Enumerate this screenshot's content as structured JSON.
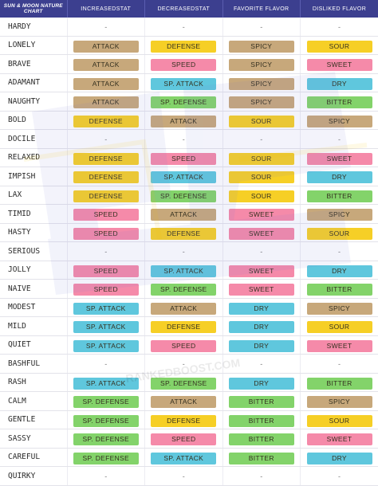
{
  "header": {
    "title": "SUN & MOON NATURE CHART",
    "col_increased": "INCREASEDSTAT",
    "col_decreased": "DECREASEDSTAT",
    "col_favorite": "FAVORITE FLAVOR",
    "col_disliked": "DISLIKED FLAVOR"
  },
  "colors": {
    "ATTACK": "#c7a87b",
    "DEFENSE": "#f6cf26",
    "SPEED": "#f58aa9",
    "SP. ATTACK": "#5fc7dd",
    "SP. DEFENSE": "#83d36a",
    "SPICY": "#c7a87b",
    "SOUR": "#f6cf26",
    "SWEET": "#f58aa9",
    "DRY": "#5fc7dd",
    "BITTER": "#83d36a"
  },
  "watermark": "RANKEDBOOST.COM",
  "natures": [
    {
      "name": "HARDY",
      "inc": "-",
      "dec": "-",
      "fav": "-",
      "dis": "-"
    },
    {
      "name": "LONELY",
      "inc": "ATTACK",
      "dec": "DEFENSE",
      "fav": "SPICY",
      "dis": "SOUR"
    },
    {
      "name": "BRAVE",
      "inc": "ATTACK",
      "dec": "SPEED",
      "fav": "SPICY",
      "dis": "SWEET"
    },
    {
      "name": "ADAMANT",
      "inc": "ATTACK",
      "dec": "SP. ATTACK",
      "fav": "SPICY",
      "dis": "DRY"
    },
    {
      "name": "NAUGHTY",
      "inc": "ATTACK",
      "dec": "SP. DEFENSE",
      "fav": "SPICY",
      "dis": "BITTER"
    },
    {
      "name": "BOLD",
      "inc": "DEFENSE",
      "dec": "ATTACK",
      "fav": "SOUR",
      "dis": "SPICY"
    },
    {
      "name": "DOCILE",
      "inc": "-",
      "dec": "-",
      "fav": "-",
      "dis": "-"
    },
    {
      "name": "RELAXED",
      "inc": "DEFENSE",
      "dec": "SPEED",
      "fav": "SOUR",
      "dis": "SWEET"
    },
    {
      "name": "IMPISH",
      "inc": "DEFENSE",
      "dec": "SP. ATTACK",
      "fav": "SOUR",
      "dis": "DRY"
    },
    {
      "name": "LAX",
      "inc": "DEFENSE",
      "dec": "SP. DEFENSE",
      "fav": "SOUR",
      "dis": "BITTER"
    },
    {
      "name": "TIMID",
      "inc": "SPEED",
      "dec": "ATTACK",
      "fav": "SWEET",
      "dis": "SPICY"
    },
    {
      "name": "HASTY",
      "inc": "SPEED",
      "dec": "DEFENSE",
      "fav": "SWEET",
      "dis": "SOUR"
    },
    {
      "name": "SERIOUS",
      "inc": "-",
      "dec": "-",
      "fav": "-",
      "dis": "-"
    },
    {
      "name": "JOLLY",
      "inc": "SPEED",
      "dec": "SP. ATTACK",
      "fav": "SWEET",
      "dis": "DRY"
    },
    {
      "name": "NAIVE",
      "inc": "SPEED",
      "dec": "SP. DEFENSE",
      "fav": "SWEET",
      "dis": "BITTER"
    },
    {
      "name": "MODEST",
      "inc": "SP. ATTACK",
      "dec": "ATTACK",
      "fav": "DRY",
      "dis": "SPICY"
    },
    {
      "name": "MILD",
      "inc": "SP. ATTACK",
      "dec": "DEFENSE",
      "fav": "DRY",
      "dis": "SOUR"
    },
    {
      "name": "QUIET",
      "inc": "SP. ATTACK",
      "dec": "SPEED",
      "fav": "DRY",
      "dis": "SWEET"
    },
    {
      "name": "BASHFUL",
      "inc": "-",
      "dec": "-",
      "fav": "-",
      "dis": "-"
    },
    {
      "name": "RASH",
      "inc": "SP. ATTACK",
      "dec": "SP. DEFENSE",
      "fav": "DRY",
      "dis": "BITTER"
    },
    {
      "name": "CALM",
      "inc": "SP. DEFENSE",
      "dec": "ATTACK",
      "fav": "BITTER",
      "dis": "SPICY"
    },
    {
      "name": "GENTLE",
      "inc": "SP. DEFENSE",
      "dec": "DEFENSE",
      "fav": "BITTER",
      "dis": "SOUR"
    },
    {
      "name": "SASSY",
      "inc": "SP. DEFENSE",
      "dec": "SPEED",
      "fav": "BITTER",
      "dis": "SWEET"
    },
    {
      "name": "CAREFUL",
      "inc": "SP. DEFENSE",
      "dec": "SP. ATTACK",
      "fav": "BITTER",
      "dis": "DRY"
    },
    {
      "name": "QUIRKY",
      "inc": "-",
      "dec": "-",
      "fav": "-",
      "dis": "-"
    }
  ]
}
